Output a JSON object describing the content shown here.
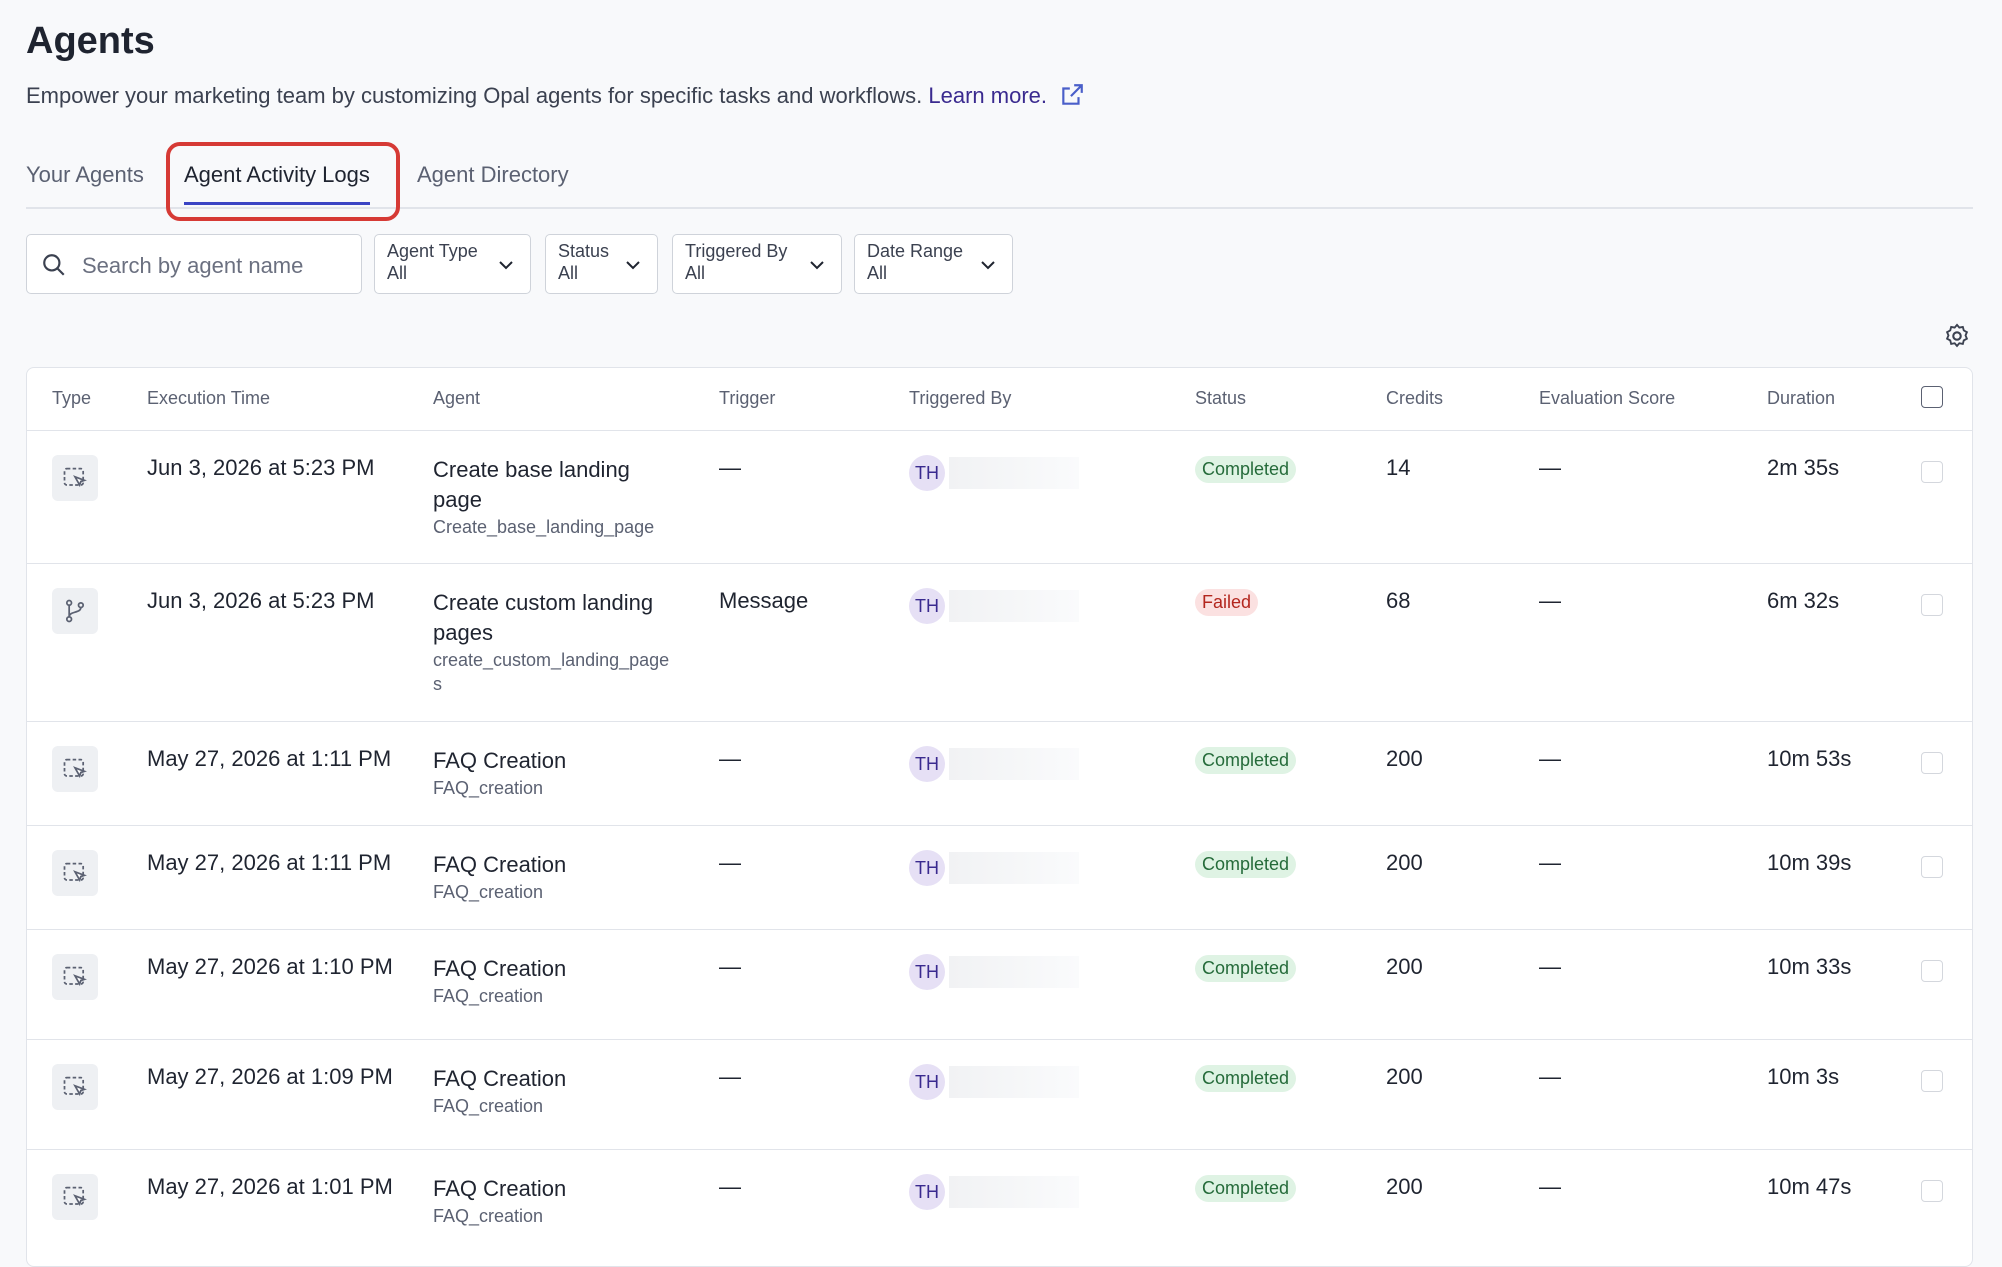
{
  "header": {
    "title": "Agents",
    "description": "Empower your marketing team by customizing Opal agents for specific tasks and workflows.",
    "link": "Learn more."
  },
  "tabs": [
    {
      "label": "Your Agents",
      "active": false
    },
    {
      "label": "Agent Activity Logs",
      "active": true
    },
    {
      "label": "Agent Directory",
      "active": false
    }
  ],
  "search": {
    "placeholder": "Search by agent name"
  },
  "filters": [
    {
      "label": "Agent Type",
      "value": "All"
    },
    {
      "label": "Status",
      "value": "All"
    },
    {
      "label": "Triggered By",
      "value": "All"
    },
    {
      "label": "Date Range",
      "value": "All"
    }
  ],
  "table": {
    "columns": [
      "Type",
      "Execution Time",
      "Agent",
      "Trigger",
      "Triggered By",
      "Status",
      "Credits",
      "Evaluation Score",
      "Duration"
    ],
    "rows": [
      {
        "type": "agent",
        "time": "Jun 3, 2026 at 5:23 PM",
        "agent": "Create base landing page",
        "slug": "Create_base_landing_page",
        "trigger": "—",
        "initials": "TH",
        "status": "Completed",
        "tone": "success",
        "credits": 14,
        "score": "—",
        "duration": "2m 35s"
      },
      {
        "type": "workflow",
        "time": "Jun 3, 2026 at 5:23 PM",
        "agent": "Create custom landing pages",
        "slug": "create_custom_landing_pages",
        "trigger": "Message",
        "initials": "TH",
        "status": "Failed",
        "tone": "error",
        "credits": 68,
        "score": "—",
        "duration": "6m 32s"
      },
      {
        "type": "agent",
        "time": "May 27, 2026 at 1:11 PM",
        "agent": "FAQ Creation",
        "slug": "FAQ_creation",
        "trigger": "—",
        "initials": "TH",
        "status": "Completed",
        "tone": "success",
        "credits": 200,
        "score": "—",
        "duration": "10m 53s"
      },
      {
        "type": "agent",
        "time": "May 27, 2026 at 1:11 PM",
        "agent": "FAQ Creation",
        "slug": "FAQ_creation",
        "trigger": "—",
        "initials": "TH",
        "status": "Completed",
        "tone": "success",
        "credits": 200,
        "score": "—",
        "duration": "10m 39s"
      },
      {
        "type": "agent",
        "time": "May 27, 2026 at 1:10 PM",
        "agent": "FAQ Creation",
        "slug": "FAQ_creation",
        "trigger": "—",
        "initials": "TH",
        "status": "Completed",
        "tone": "success",
        "credits": 200,
        "score": "—",
        "duration": "10m 33s"
      },
      {
        "type": "agent",
        "time": "May 27, 2026 at 1:09 PM",
        "agent": "FAQ Creation",
        "slug": "FAQ_creation",
        "trigger": "—",
        "initials": "TH",
        "status": "Completed",
        "tone": "success",
        "credits": 200,
        "score": "—",
        "duration": "10m 3s"
      },
      {
        "type": "agent",
        "time": "May 27, 2026 at 1:01 PM",
        "agent": "FAQ Creation",
        "slug": "FAQ_creation",
        "trigger": "—",
        "initials": "TH",
        "status": "Completed",
        "tone": "success",
        "credits": 200,
        "score": "—",
        "duration": "10m 47s"
      }
    ]
  }
}
